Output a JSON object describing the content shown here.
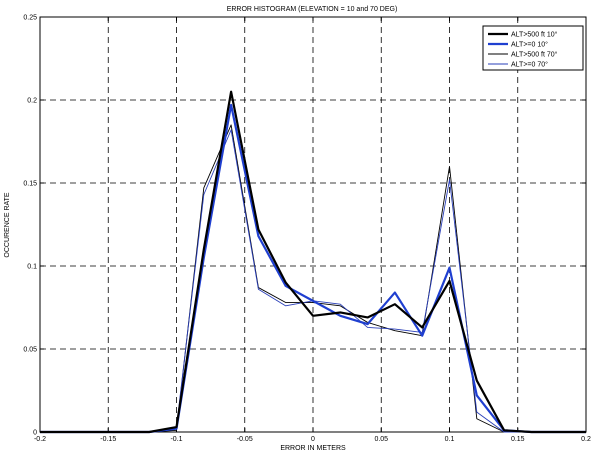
{
  "chart_data": {
    "type": "line",
    "title": "ERROR HISTOGRAM (ELEVATION = 10 and 70 DEG)",
    "xlabel": "ERROR IN METERS",
    "ylabel": "OCCURENCE RATE",
    "xlim": [
      -0.2,
      0.2
    ],
    "ylim": [
      0,
      0.25
    ],
    "xticks": [
      -0.2,
      -0.15,
      -0.1,
      -0.05,
      0,
      0.05,
      0.1,
      0.15,
      0.2
    ],
    "xtick_labels": [
      "-0.2",
      "-0.15",
      "-0.1",
      "-0.05",
      "0",
      "0.05",
      "0.1",
      "0.15",
      "0.2"
    ],
    "yticks": [
      0,
      0.05,
      0.1,
      0.15,
      0.2,
      0.25
    ],
    "ytick_labels": [
      "0",
      "0.05",
      "0.1",
      "0.15",
      "0.2",
      "0.25"
    ],
    "grid": true,
    "grid_style": "dashed",
    "legend_position": "top-right",
    "x": [
      -0.2,
      -0.18,
      -0.16,
      -0.14,
      -0.12,
      -0.1,
      -0.08,
      -0.06,
      -0.04,
      -0.02,
      0,
      0.02,
      0.04,
      0.06,
      0.08,
      0.1,
      0.12,
      0.14,
      0.16,
      0.18,
      0.2
    ],
    "series": [
      {
        "name": "ALT>500 ft 10°",
        "color": "#000000",
        "weight": "thick",
        "values": [
          0,
          0,
          0,
          0,
          0,
          0.003,
          0.11,
          0.205,
          0.122,
          0.09,
          0.07,
          0.072,
          0.069,
          0.077,
          0.063,
          0.091,
          0.031,
          0.001,
          0,
          0,
          0
        ]
      },
      {
        "name": "ALT>=0 10°",
        "color": "#1f3fd0",
        "weight": "thick",
        "values": [
          0,
          0,
          0,
          0,
          0,
          0.002,
          0.105,
          0.197,
          0.118,
          0.088,
          0.079,
          0.07,
          0.065,
          0.084,
          0.058,
          0.099,
          0.022,
          0.001,
          0,
          0,
          0
        ]
      },
      {
        "name": "ALT>500 ft 70°",
        "color": "#000000",
        "weight": "thin",
        "values": [
          0,
          0,
          0,
          0,
          0,
          0.001,
          0.147,
          0.185,
          0.087,
          0.078,
          0.078,
          0.076,
          0.066,
          0.061,
          0.058,
          0.16,
          0.008,
          0,
          0,
          0,
          0
        ]
      },
      {
        "name": "ALT>=0 70°",
        "color": "#2a3fb8",
        "weight": "thin",
        "values": [
          0,
          0,
          0,
          0,
          0,
          0.003,
          0.143,
          0.182,
          0.086,
          0.076,
          0.079,
          0.077,
          0.063,
          0.062,
          0.06,
          0.152,
          0.012,
          0,
          0,
          0,
          0
        ]
      }
    ]
  }
}
